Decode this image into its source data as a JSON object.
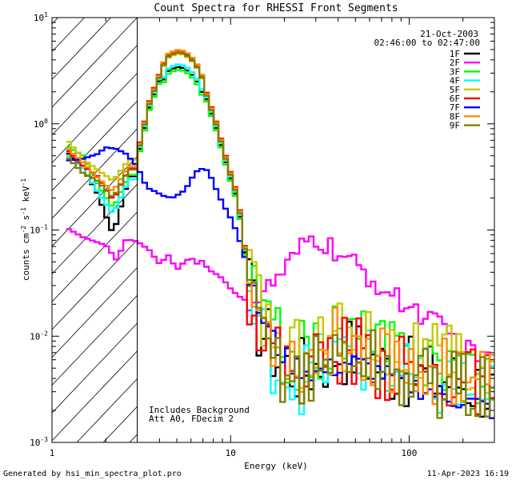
{
  "chart_data": {
    "type": "line",
    "title": "Count Spectra for RHESSI Front Segments",
    "xlabel": "Energy (keV)",
    "ylabel_parts": [
      "counts cm",
      "-2",
      " s",
      "-1",
      " keV",
      "-1"
    ],
    "xscale": "log",
    "yscale": "log",
    "xlim": [
      1,
      300
    ],
    "ylim": [
      0.001,
      10
    ],
    "x_ticks": [
      {
        "value": 1,
        "label": "1"
      },
      {
        "value": 10,
        "label": "10"
      },
      {
        "value": 100,
        "label": "100"
      }
    ],
    "y_ticks": [
      {
        "value": 0.001,
        "base": "10",
        "exp": "-3"
      },
      {
        "value": 0.01,
        "base": "10",
        "exp": "-2"
      },
      {
        "value": 0.1,
        "base": "10",
        "exp": "-1"
      },
      {
        "value": 1,
        "base": "10",
        "exp": "0"
      },
      {
        "value": 10,
        "base": "10",
        "exp": "1"
      }
    ],
    "attenuated_below_keV": 3,
    "date": "21-Oct-2003",
    "time_range": "02:46:00 to 02:47:00",
    "annotations": [
      "Includes Background",
      "Att A0, FDecim 2"
    ],
    "footer_left": "Generated by hsi_min_spectra_plot.pro",
    "footer_right": "11-Apr-2023 16:19",
    "series": [
      {
        "name": "1F",
        "color": "#000000",
        "low": [
          0.55,
          0.38,
          0.22,
          0.09,
          0.32
        ],
        "scale": 1.0,
        "peak": 3.4,
        "tail_amp": 1.0
      },
      {
        "name": "2F",
        "color": "#ff00ff",
        "flat": true,
        "points": [
          [
            1.2,
            0.105
          ],
          [
            1.5,
            0.085
          ],
          [
            2.0,
            0.072
          ],
          [
            2.3,
            0.052
          ],
          [
            2.6,
            0.082
          ],
          [
            3,
            0.078
          ],
          [
            3.5,
            0.065
          ],
          [
            4,
            0.048
          ],
          [
            4.5,
            0.058
          ],
          [
            5,
            0.042
          ],
          [
            5.5,
            0.05
          ],
          [
            6,
            0.055
          ],
          [
            6.5,
            0.048
          ],
          [
            7,
            0.052
          ],
          [
            7.5,
            0.042
          ],
          [
            8,
            0.04
          ],
          [
            9,
            0.035
          ],
          [
            10,
            0.028
          ],
          [
            11,
            0.024
          ],
          [
            12,
            0.022
          ],
          [
            13,
            0.021
          ],
          [
            14,
            0.022
          ],
          [
            15,
            0.025
          ],
          [
            17,
            0.03
          ],
          [
            19,
            0.037
          ],
          [
            21,
            0.045
          ],
          [
            23,
            0.055
          ],
          [
            25,
            0.066
          ],
          [
            27,
            0.078
          ],
          [
            30,
            0.082
          ],
          [
            33,
            0.074
          ],
          [
            36,
            0.068
          ],
          [
            40,
            0.06
          ],
          [
            45,
            0.05
          ],
          [
            50,
            0.046
          ],
          [
            55,
            0.04
          ],
          [
            60,
            0.035
          ],
          [
            70,
            0.029
          ],
          [
            80,
            0.024
          ],
          [
            90,
            0.021
          ],
          [
            100,
            0.019
          ],
          [
            120,
            0.016
          ],
          [
            140,
            0.013
          ],
          [
            160,
            0.011
          ],
          [
            180,
            0.0095
          ],
          [
            200,
            0.008
          ],
          [
            230,
            0.0065
          ],
          [
            260,
            0.0058
          ],
          [
            300,
            0.0052
          ]
        ]
      },
      {
        "name": "3F",
        "color": "#00ff00",
        "low": [
          0.62,
          0.5,
          0.27,
          0.16,
          0.33
        ],
        "scale": 0.95,
        "peak": 3.2,
        "tail_amp": 1.35
      },
      {
        "name": "4F",
        "color": "#00ffff",
        "low": [
          0.52,
          0.38,
          0.23,
          0.14,
          0.3
        ],
        "scale": 1.05,
        "peak": 3.6,
        "tail_amp": 0.85
      },
      {
        "name": "5F",
        "color": "#c8c800",
        "low": [
          0.72,
          0.46,
          0.37,
          0.29,
          0.46
        ],
        "scale": 1.1,
        "peak": 4.6,
        "tail_amp": 1.45
      },
      {
        "name": "6F",
        "color": "#ff0000",
        "low": [
          0.58,
          0.4,
          0.32,
          0.19,
          0.38
        ],
        "scale": 1.15,
        "peak": 4.9,
        "tail_amp": 1.0
      },
      {
        "name": "7F",
        "color": "#0000ff",
        "flat": true,
        "points": [
          [
            1.2,
            0.45
          ],
          [
            1.5,
            0.47
          ],
          [
            1.8,
            0.52
          ],
          [
            2.0,
            0.6
          ],
          [
            2.3,
            0.58
          ],
          [
            2.6,
            0.52
          ],
          [
            3,
            0.4
          ],
          [
            3.4,
            0.25
          ],
          [
            3.8,
            0.23
          ],
          [
            4.2,
            0.21
          ],
          [
            4.7,
            0.2
          ],
          [
            5.2,
            0.22
          ],
          [
            5.6,
            0.24
          ],
          [
            6,
            0.3
          ],
          [
            6.5,
            0.36
          ],
          [
            7,
            0.38
          ],
          [
            7.5,
            0.36
          ],
          [
            8,
            0.28
          ],
          [
            8.5,
            0.22
          ],
          [
            9,
            0.18
          ],
          [
            10,
            0.13
          ],
          [
            11,
            0.09
          ],
          [
            12,
            0.055
          ],
          [
            13,
            0.03
          ],
          [
            14,
            0.02
          ],
          [
            15,
            0.015
          ],
          [
            16,
            0.012
          ],
          [
            17,
            0.01
          ],
          [
            18,
            0.008
          ],
          [
            20,
            0.0065
          ],
          [
            22,
            0.0055
          ],
          [
            25,
            0.005
          ],
          [
            30,
            0.0045
          ],
          [
            35,
            0.0048
          ],
          [
            40,
            0.0052
          ],
          [
            45,
            0.0058
          ],
          [
            50,
            0.0055
          ],
          [
            60,
            0.005
          ],
          [
            70,
            0.0045
          ],
          [
            80,
            0.004
          ],
          [
            100,
            0.0035
          ],
          [
            120,
            0.0032
          ],
          [
            150,
            0.0028
          ],
          [
            200,
            0.0025
          ],
          [
            250,
            0.0022
          ],
          [
            300,
            0.002
          ]
        ]
      },
      {
        "name": "8F",
        "color": "#ff8c00",
        "low": [
          0.6,
          0.43,
          0.31,
          0.23,
          0.4
        ],
        "scale": 1.12,
        "peak": 5.0,
        "tail_amp": 1.2
      },
      {
        "name": "9F",
        "color": "#808000",
        "low": [
          0.5,
          0.34,
          0.29,
          0.2,
          0.37
        ],
        "scale": 1.08,
        "peak": 4.7,
        "tail_amp": 0.9
      }
    ]
  }
}
